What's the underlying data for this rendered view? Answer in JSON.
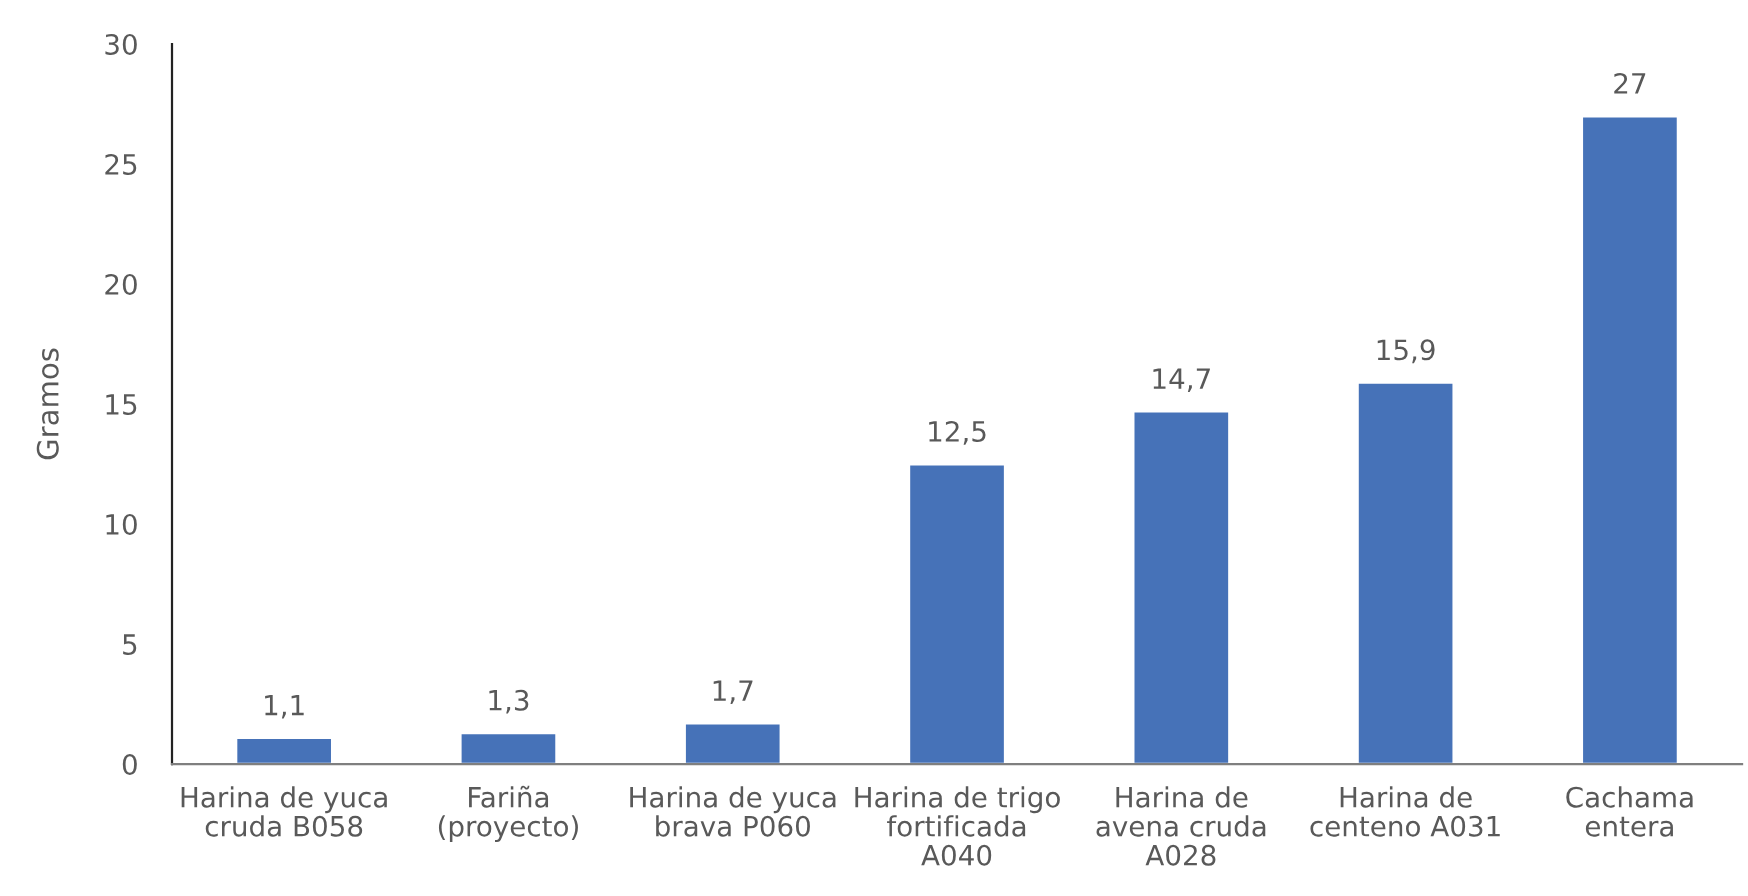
{
  "chart_data": {
    "type": "bar",
    "ylabel": "Gramos",
    "categories": [
      "Harina de yuca\ncruda B058",
      "Fariña\n(proyecto)",
      "Harina de yuca\nbrava P060",
      "Harina de trigo\nfortificada\nA040",
      "Harina de\navena cruda\nA028",
      "Harina de\ncenteno A031",
      "Cachama\nentera"
    ],
    "values": [
      1.1,
      1.3,
      1.7,
      12.5,
      14.7,
      15.9,
      27
    ],
    "value_labels": [
      "1,1",
      "1,3",
      "1,7",
      "12,5",
      "14,7",
      "15,9",
      "27"
    ],
    "color": "#4672b8",
    "ylim": [
      0,
      30
    ],
    "yticks": [
      0,
      5,
      10,
      15,
      20,
      25,
      30
    ],
    "grid": false,
    "legend": false
  }
}
